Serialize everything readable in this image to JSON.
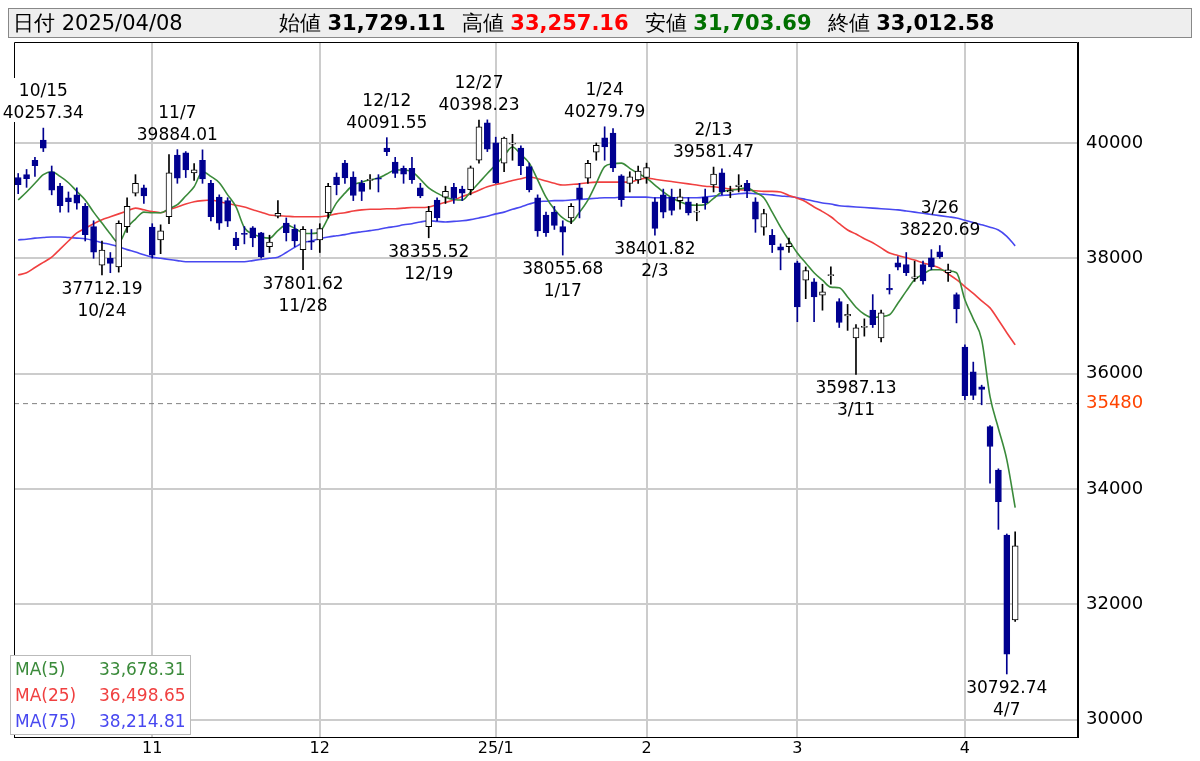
{
  "chart_data": {
    "type": "candlestick",
    "title": "日付 2025/04/08",
    "categories": [
      null,
      null,
      null,
      null,
      null,
      null,
      null,
      null,
      null,
      null,
      null,
      null,
      null,
      null,
      null,
      null,
      "11",
      null,
      null,
      null,
      null,
      null,
      null,
      null,
      null,
      null,
      null,
      null,
      null,
      null,
      null,
      null,
      null,
      null,
      null,
      null,
      "12",
      null,
      null,
      null,
      null,
      null,
      null,
      null,
      null,
      null,
      null,
      null,
      null,
      null,
      null,
      null,
      null,
      null,
      null,
      null,
      null,
      "25/1",
      null,
      null,
      null,
      null,
      null,
      null,
      null,
      null,
      null,
      null,
      null,
      null,
      null,
      null,
      null,
      null,
      null,
      "2",
      null,
      null,
      null,
      null,
      null,
      null,
      null,
      null,
      null,
      null,
      null,
      null,
      null,
      null,
      null,
      null,
      null,
      "3",
      null,
      null,
      null,
      null,
      null,
      null,
      null,
      null,
      null,
      null,
      null,
      null,
      null,
      null,
      null,
      null,
      null,
      null,
      null,
      "4",
      null,
      null,
      null,
      null,
      null,
      null,
      null,
      null,
      null,
      null,
      null,
      null,
      null
    ],
    "ohlc": [
      [
        39400,
        39470,
        39120,
        39277
      ],
      [
        39450,
        39540,
        39230,
        39380
      ],
      [
        39700,
        39750,
        39420,
        39605
      ],
      [
        40050,
        40257.34,
        39850,
        39910
      ],
      [
        39500,
        39600,
        39100,
        39180
      ],
      [
        39250,
        39300,
        38800,
        38911
      ],
      [
        39050,
        39150,
        38800,
        38981
      ],
      [
        39100,
        39220,
        38850,
        38954
      ],
      [
        38900,
        38950,
        38300,
        38411
      ],
      [
        38550,
        38650,
        38000,
        38104
      ],
      [
        37880,
        38300,
        37712.19,
        38143
      ],
      [
        38000,
        38100,
        37750,
        37913
      ],
      [
        37850,
        38650,
        37760,
        38605
      ],
      [
        38550,
        39050,
        38450,
        38900
      ],
      [
        39130,
        39450,
        39080,
        39300
      ],
      [
        39220,
        39270,
        38950,
        39081
      ],
      [
        38540,
        38600,
        38000,
        38053
      ],
      [
        38320,
        38580,
        38080,
        38474
      ],
      [
        38720,
        39800,
        38600,
        39480
      ],
      [
        39790,
        39884.01,
        39300,
        39390
      ],
      [
        39830,
        39850,
        39400,
        39530
      ],
      [
        39480,
        39640,
        39350,
        39533
      ],
      [
        39700,
        39880,
        39300,
        39376
      ],
      [
        39300,
        39350,
        38650,
        38721
      ],
      [
        39060,
        39100,
        38500,
        38610
      ],
      [
        39000,
        39050,
        38550,
        38642
      ],
      [
        38350,
        38450,
        38150,
        38220
      ],
      [
        38420,
        38550,
        38250,
        38414
      ],
      [
        38530,
        38550,
        38200,
        38352
      ],
      [
        38440,
        38450,
        38000,
        38026
      ],
      [
        38200,
        38400,
        38100,
        38283
      ],
      [
        38730,
        39000,
        38700,
        38780
      ],
      [
        38610,
        38700,
        38300,
        38442
      ],
      [
        38500,
        38580,
        38200,
        38300
      ],
      [
        38150,
        38550,
        37801.62,
        38500
      ],
      [
        38300,
        38500,
        38150,
        38280
      ],
      [
        38320,
        38600,
        38100,
        38513
      ],
      [
        38790,
        39300,
        38700,
        39248
      ],
      [
        39410,
        39480,
        39100,
        39276
      ],
      [
        39650,
        39700,
        39300,
        39395
      ],
      [
        39410,
        39500,
        39000,
        39091
      ],
      [
        39300,
        39350,
        39000,
        39160
      ],
      [
        39350,
        39450,
        39200,
        39367
      ],
      [
        39390,
        39450,
        39150,
        39372
      ],
      [
        39910,
        40091.55,
        39780,
        39849
      ],
      [
        39670,
        39750,
        39400,
        39470
      ],
      [
        39560,
        39600,
        39300,
        39457
      ],
      [
        39560,
        39750,
        39300,
        39364
      ],
      [
        39220,
        39300,
        39050,
        39081
      ],
      [
        38550,
        38900,
        38355.52,
        38813
      ],
      [
        39010,
        39050,
        38650,
        38701
      ],
      [
        39060,
        39250,
        38950,
        39161
      ],
      [
        39230,
        39300,
        38950,
        39037
      ],
      [
        39200,
        39250,
        39000,
        39130
      ],
      [
        39190,
        39600,
        39100,
        39568
      ],
      [
        39700,
        40398.23,
        39650,
        40281
      ],
      [
        40350,
        40400,
        39850,
        39894
      ],
      [
        40000,
        40100,
        39300,
        39307
      ],
      [
        39650,
        40100,
        39500,
        40083
      ],
      [
        39980,
        40150,
        39700,
        39981
      ],
      [
        39910,
        39950,
        39450,
        39605
      ],
      [
        39590,
        39650,
        39150,
        39190
      ],
      [
        39050,
        39100,
        38380,
        38474
      ],
      [
        38750,
        38800,
        38380,
        38444
      ],
      [
        38800,
        38900,
        38500,
        38572
      ],
      [
        38550,
        38650,
        38055.68,
        38451
      ],
      [
        38700,
        38950,
        38600,
        38902
      ],
      [
        39220,
        39300,
        38700,
        39027
      ],
      [
        39390,
        39700,
        39300,
        39646
      ],
      [
        39840,
        40000,
        39700,
        39958
      ],
      [
        40090,
        40279.79,
        39700,
        39931
      ],
      [
        40170,
        40250,
        39500,
        39565
      ],
      [
        39430,
        39450,
        38900,
        39016
      ],
      [
        39300,
        39500,
        39150,
        39414
      ],
      [
        39360,
        39600,
        39300,
        39513
      ],
      [
        39400,
        39650,
        39300,
        39572
      ],
      [
        38980,
        39050,
        38401.82,
        38520
      ],
      [
        39100,
        39200,
        38700,
        38798
      ],
      [
        39060,
        39200,
        38750,
        38831
      ],
      [
        39000,
        39200,
        38850,
        39066
      ],
      [
        38980,
        39050,
        38750,
        38787
      ],
      [
        38800,
        38950,
        38650,
        38801
      ],
      [
        39060,
        39200,
        38850,
        38963
      ],
      [
        39270,
        39581.47,
        39150,
        39461
      ],
      [
        39480,
        39550,
        39100,
        39149
      ],
      [
        39150,
        39250,
        39050,
        39174
      ],
      [
        39240,
        39450,
        39150,
        39270
      ],
      [
        39300,
        39350,
        39050,
        39164
      ],
      [
        38980,
        39050,
        38450,
        38678
      ],
      [
        38540,
        38850,
        38400,
        38776
      ],
      [
        38400,
        38500,
        38100,
        38237
      ],
      [
        38200,
        38250,
        37800,
        38142
      ],
      [
        38200,
        38350,
        38100,
        38256
      ],
      [
        37920,
        37950,
        36900,
        37155
      ],
      [
        37620,
        37850,
        37300,
        37785
      ],
      [
        37590,
        37650,
        36900,
        37331
      ],
      [
        37360,
        37550,
        37100,
        37418
      ],
      [
        37700,
        37850,
        37550,
        37704
      ],
      [
        37250,
        37300,
        36800,
        36887
      ],
      [
        37000,
        37200,
        36750,
        37028
      ],
      [
        36620,
        36850,
        35987.13,
        36793
      ],
      [
        36800,
        36950,
        36650,
        36819
      ],
      [
        37100,
        37370,
        36800,
        36850
      ],
      [
        36620,
        37100,
        36550,
        37053
      ],
      [
        37480,
        37720,
        37380,
        37450
      ],
      [
        37920,
        38030,
        37800,
        37845
      ],
      [
        37890,
        38100,
        37700,
        37751
      ],
      [
        37650,
        37950,
        37600,
        37677
      ],
      [
        37890,
        37950,
        37550,
        37608
      ],
      [
        38010,
        38150,
        37800,
        37850
      ],
      [
        38110,
        38220.69,
        38000,
        38027
      ],
      [
        37750,
        37900,
        37600,
        37799
      ],
      [
        37370,
        37400,
        36880,
        37120
      ],
      [
        36460,
        36500,
        35550,
        35617
      ],
      [
        36030,
        36200,
        35550,
        35624
      ],
      [
        35770,
        35800,
        35460,
        35725
      ],
      [
        35080,
        35100,
        34100,
        34736
      ],
      [
        34330,
        34350,
        33300,
        33780
      ],
      [
        33200,
        33220,
        30792.74,
        31136
      ],
      [
        31729.11,
        33257.16,
        31703.69,
        33012.58
      ],
      null,
      null,
      null,
      null,
      null,
      null,
      null
    ],
    "series": [
      {
        "type": "line",
        "name": "MA(5) 33,678.31",
        "color": "#3a8a3a",
        "values": [
          39010,
          39150,
          39300,
          39450,
          39500,
          39420,
          39310,
          39160,
          39010,
          38800,
          38610,
          38420,
          38270,
          38530,
          38680,
          38800,
          38790,
          38790,
          38860,
          38930,
          39080,
          39240,
          39500,
          39420,
          39310,
          39100,
          38890,
          38530,
          38420,
          38370,
          38350,
          38480,
          38580,
          38520,
          38440,
          38430,
          38460,
          38700,
          38960,
          39130,
          39270,
          39320,
          39360,
          39390,
          39460,
          39530,
          39530,
          39500,
          39370,
          39220,
          39130,
          39060,
          39020,
          39010,
          39150,
          39310,
          39470,
          39620,
          39780,
          39930,
          39800,
          39650,
          39360,
          39060,
          38850,
          38700,
          38630,
          38800,
          39010,
          39300,
          39590,
          39640,
          39650,
          39560,
          39470,
          39390,
          39270,
          39150,
          39050,
          38980,
          38930,
          38920,
          38930,
          39040,
          39150,
          39180,
          39200,
          39220,
          39140,
          39050,
          38800,
          38540,
          38310,
          38090,
          37920,
          37750,
          37620,
          37500,
          37490,
          37330,
          37150,
          37030,
          36970,
          36990,
          37020,
          37220,
          37430,
          37630,
          37720,
          37800,
          37800,
          37780,
          37750,
          37280,
          36950,
          36590,
          35600,
          35050,
          34510,
          33678.31,
          null,
          null,
          null,
          null,
          null,
          null,
          null
        ]
      },
      {
        "type": "line",
        "name": "MA(25) 36,498.65",
        "color": "#f04040",
        "values": [
          37710,
          37750,
          37840,
          37930,
          38020,
          38160,
          38300,
          38440,
          38520,
          38600,
          38670,
          38720,
          38770,
          38820,
          38870,
          38840,
          38810,
          38790,
          38840,
          38890,
          38940,
          38980,
          39000,
          39010,
          38980,
          38950,
          38920,
          38890,
          38840,
          38800,
          38750,
          38740,
          38730,
          38720,
          38720,
          38720,
          38720,
          38740,
          38770,
          38790,
          38820,
          38840,
          38850,
          38850,
          38860,
          38860,
          38870,
          38880,
          38880,
          38890,
          38930,
          38970,
          39010,
          39070,
          39120,
          39180,
          39240,
          39280,
          39310,
          39350,
          39380,
          39410,
          39380,
          39340,
          39300,
          39270,
          39280,
          39290,
          39310,
          39320,
          39320,
          39320,
          39320,
          39320,
          39360,
          39390,
          39370,
          39350,
          39330,
          39310,
          39290,
          39270,
          39250,
          39240,
          39220,
          39200,
          39190,
          39180,
          39170,
          39160,
          39160,
          39150,
          39090,
          39040,
          38980,
          38890,
          38810,
          38720,
          38600,
          38490,
          38420,
          38340,
          38270,
          38180,
          38090,
          38050,
          38010,
          37970,
          37920,
          37880,
          37830,
          37730,
          37630,
          37510,
          37390,
          37260,
          37140,
          36930,
          36710,
          36498.65,
          null,
          null,
          null,
          null,
          null,
          null,
          null
        ]
      },
      {
        "type": "line",
        "name": "MA(75) 38,214.81",
        "color": "#4848f0",
        "values": [
          38320,
          38330,
          38350,
          38360,
          38370,
          38370,
          38360,
          38350,
          38340,
          38310,
          38270,
          38240,
          38200,
          38150,
          38110,
          38060,
          38020,
          38000,
          37980,
          37960,
          37940,
          37940,
          37940,
          37940,
          37940,
          37940,
          37940,
          37940,
          37960,
          37980,
          38000,
          38020,
          38100,
          38190,
          38270,
          38300,
          38340,
          38370,
          38390,
          38410,
          38440,
          38460,
          38480,
          38500,
          38530,
          38550,
          38580,
          38600,
          38630,
          38650,
          38640,
          38630,
          38640,
          38650,
          38670,
          38700,
          38730,
          38770,
          38800,
          38850,
          38890,
          38940,
          38980,
          38990,
          39000,
          39000,
          39010,
          39020,
          39030,
          39040,
          39050,
          39050,
          39060,
          39060,
          39060,
          39060,
          39050,
          39050,
          39050,
          39050,
          39050,
          39050,
          39060,
          39080,
          39090,
          39100,
          39120,
          39130,
          39120,
          39110,
          39100,
          39080,
          39070,
          39050,
          39020,
          38990,
          38960,
          38940,
          38910,
          38900,
          38890,
          38880,
          38870,
          38860,
          38850,
          38840,
          38820,
          38800,
          38780,
          38760,
          38740,
          38720,
          38700,
          38660,
          38620,
          38580,
          38540,
          38490,
          38380,
          38214.81,
          null,
          null,
          null,
          null,
          null,
          null,
          null
        ]
      }
    ],
    "ylim": [
      29700,
      41750
    ],
    "yticks": [
      30000,
      32000,
      34000,
      35480,
      36000,
      38000,
      40000
    ],
    "grid": true,
    "line_style": "solid",
    "ref_lines": [
      {
        "axis": "y",
        "value": 35480,
        "color": "#808080",
        "line_style": "dashed"
      }
    ],
    "annotations": [
      "始値 31,729.11",
      "高値 33,257.16",
      "安値 31,703.69",
      "終値 33,012.58",
      {
        "text": "10/15\n40257.34",
        "y": 40257.34
      },
      {
        "text": "37712.19\n10/24",
        "y": 37712.19
      },
      {
        "text": "11/7\n39884.01",
        "y": 39884.01
      },
      {
        "text": "37801.62\n11/28",
        "y": 37801.62
      },
      {
        "text": "12/12\n40091.55",
        "y": 40091.55
      },
      {
        "text": "38355.52\n12/19",
        "y": 38355.52
      },
      {
        "text": "12/27\n40398.23",
        "y": 40398.23
      },
      {
        "text": "38055.68\n1/17",
        "y": 38055.68
      },
      {
        "text": "1/24\n40279.79",
        "y": 40279.79
      },
      {
        "text": "38401.82\n2/3",
        "y": 38401.82
      },
      {
        "text": "2/13\n39581.47",
        "y": 39581.47
      },
      {
        "text": "35987.13\n3/11",
        "y": 35987.13
      },
      {
        "text": "3/26\n38220.69",
        "y": 38220.69
      },
      {
        "text": "30792.74\n4/7",
        "y": 30792.74
      }
    ]
  }
}
